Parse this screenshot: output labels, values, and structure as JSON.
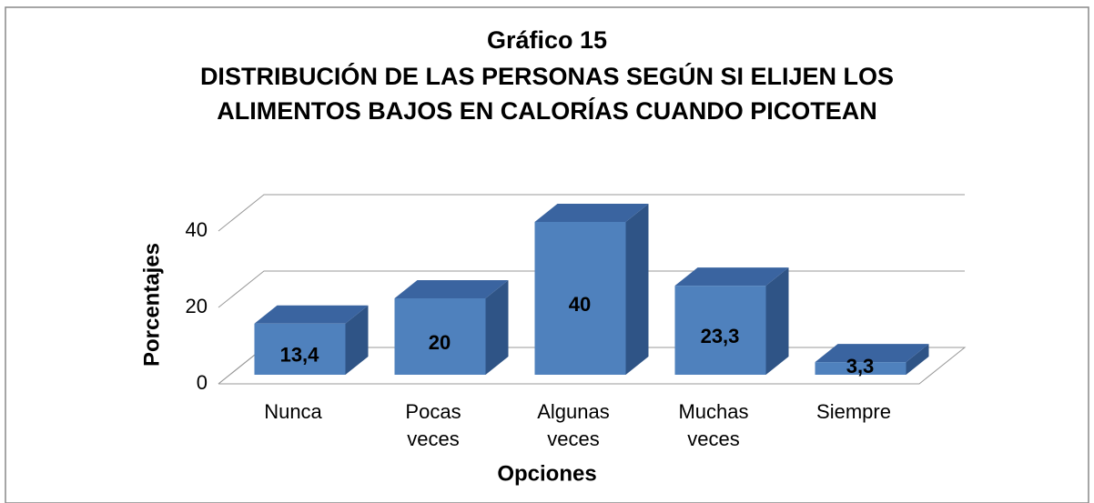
{
  "chart_data": {
    "type": "bar3d",
    "title": [
      "Gráfico 15",
      "DISTRIBUCIÓN DE LAS PERSONAS SEGÚN SI ELIJEN LOS",
      "ALIMENTOS BAJOS EN CALORÍAS CUANDO PICOTEAN"
    ],
    "x_label": "Opciones",
    "y_label": "Porcentajes",
    "categories": [
      "Nunca",
      "Pocas veces",
      "Algunas veces",
      "Muchas veces",
      "Siempre"
    ],
    "values": [
      13.4,
      20,
      40,
      23.3,
      3.3
    ],
    "value_labels": [
      "13,4",
      "20",
      "40",
      "23,3",
      "3,3"
    ],
    "color": "#4f81bd",
    "ylim": [
      0,
      40
    ],
    "yticks": [
      0,
      20,
      40
    ],
    "grid": true
  }
}
